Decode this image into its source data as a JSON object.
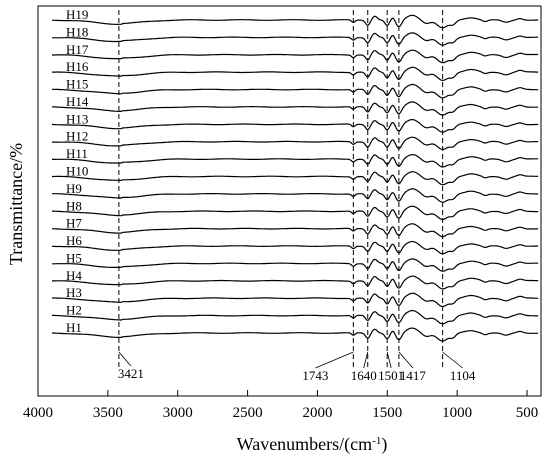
{
  "chart_data": {
    "type": "line",
    "title": "",
    "xlabel": "Wavenumbers/(cm",
    "xlabel_sup": "-1",
    "xlabel_suffix": ")",
    "ylabel": "Transmittance/%",
    "xlim": [
      4000,
      400
    ],
    "x_reversed": true,
    "xticks": [
      4000,
      3500,
      3000,
      2500,
      2000,
      1500,
      1000,
      500
    ],
    "y_ticks_shown": false,
    "grid": false,
    "legend": "none",
    "line_color": "#000000",
    "series": [
      {
        "name": "H1"
      },
      {
        "name": "H2"
      },
      {
        "name": "H3"
      },
      {
        "name": "H4"
      },
      {
        "name": "H5"
      },
      {
        "name": "H6"
      },
      {
        "name": "H7"
      },
      {
        "name": "H8"
      },
      {
        "name": "H9"
      },
      {
        "name": "H10"
      },
      {
        "name": "H11"
      },
      {
        "name": "H12"
      },
      {
        "name": "H13"
      },
      {
        "name": "H14"
      },
      {
        "name": "H15"
      },
      {
        "name": "H16"
      },
      {
        "name": "H17"
      },
      {
        "name": "H18"
      },
      {
        "name": "H19"
      }
    ],
    "peaks": [
      {
        "wavenumber": 3421,
        "label": "3421"
      },
      {
        "wavenumber": 1743,
        "label": "1743"
      },
      {
        "wavenumber": 1640,
        "label": "1640"
      },
      {
        "wavenumber": 1501,
        "label": "1501"
      },
      {
        "wavenumber": 1417,
        "label": "1417"
      },
      {
        "wavenumber": 1104,
        "label": "1104"
      }
    ]
  }
}
